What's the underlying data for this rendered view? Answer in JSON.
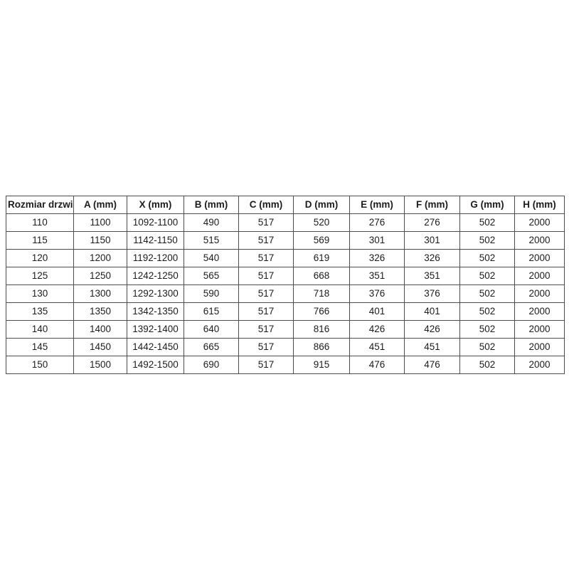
{
  "table": {
    "name": "door-size-dimensions-table",
    "headers": [
      "Rozmiar drzwi",
      "A (mm)",
      "X (mm)",
      "B (mm)",
      "C (mm)",
      "D (mm)",
      "E (mm)",
      "F (mm)",
      "G (mm)",
      "H (mm)"
    ],
    "rows": [
      [
        "110",
        "1100",
        "1092-1100",
        "490",
        "517",
        "520",
        "276",
        "276",
        "502",
        "2000"
      ],
      [
        "115",
        "1150",
        "1142-1150",
        "515",
        "517",
        "569",
        "301",
        "301",
        "502",
        "2000"
      ],
      [
        "120",
        "1200",
        "1192-1200",
        "540",
        "517",
        "619",
        "326",
        "326",
        "502",
        "2000"
      ],
      [
        "125",
        "1250",
        "1242-1250",
        "565",
        "517",
        "668",
        "351",
        "351",
        "502",
        "2000"
      ],
      [
        "130",
        "1300",
        "1292-1300",
        "590",
        "517",
        "718",
        "376",
        "376",
        "502",
        "2000"
      ],
      [
        "135",
        "1350",
        "1342-1350",
        "615",
        "517",
        "766",
        "401",
        "401",
        "502",
        "2000"
      ],
      [
        "140",
        "1400",
        "1392-1400",
        "640",
        "517",
        "816",
        "426",
        "426",
        "502",
        "2000"
      ],
      [
        "145",
        "1450",
        "1442-1450",
        "665",
        "517",
        "866",
        "451",
        "451",
        "502",
        "2000"
      ],
      [
        "150",
        "1500",
        "1492-1500",
        "690",
        "517",
        "915",
        "476",
        "476",
        "502",
        "2000"
      ]
    ],
    "colors": {
      "border": "#4d4d4d",
      "text": "#1c1c1c",
      "background": "#ffffff"
    }
  }
}
